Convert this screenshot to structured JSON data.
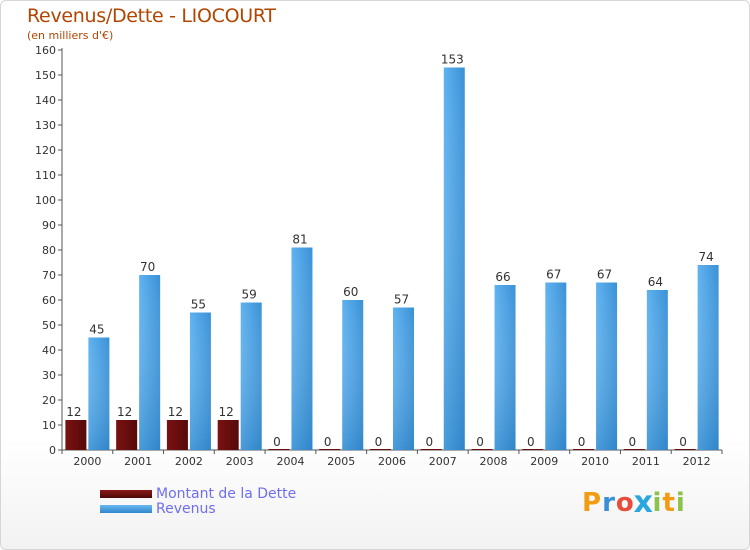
{
  "chart_data": {
    "type": "bar",
    "title": "Revenus/Dette - LIOCOURT",
    "subtitle": "(en milliers d'€)",
    "xlabel": "",
    "ylabel": "",
    "categories": [
      "2000",
      "2001",
      "2002",
      "2003",
      "2004",
      "2005",
      "2006",
      "2007",
      "2008",
      "2009",
      "2010",
      "2011",
      "2012"
    ],
    "series": [
      {
        "name": "Montant de la Dette",
        "color": "#6b0e0e",
        "values": [
          12,
          12,
          12,
          12,
          0,
          0,
          0,
          0,
          0,
          0,
          0,
          0,
          0
        ]
      },
      {
        "name": "Revenus",
        "color": "#4aa3e8",
        "values": [
          45,
          70,
          55,
          59,
          81,
          60,
          57,
          153,
          66,
          67,
          67,
          64,
          74
        ]
      }
    ],
    "ylim": [
      0,
      160
    ],
    "yticks": [
      0,
      10,
      20,
      30,
      40,
      50,
      60,
      70,
      80,
      90,
      100,
      110,
      120,
      130,
      140,
      150,
      160
    ],
    "grid": false,
    "legend_position": "bottom-left"
  },
  "logo": {
    "text": "Proxiti",
    "letters": [
      "P",
      "r",
      "o",
      "x",
      "i",
      "t",
      "i"
    ],
    "colors": [
      "#f39c12",
      "#3b8fd9",
      "#e74c3c",
      "#2aa7df",
      "#8bc34a",
      "#f39c12",
      "#8bc34a"
    ]
  }
}
